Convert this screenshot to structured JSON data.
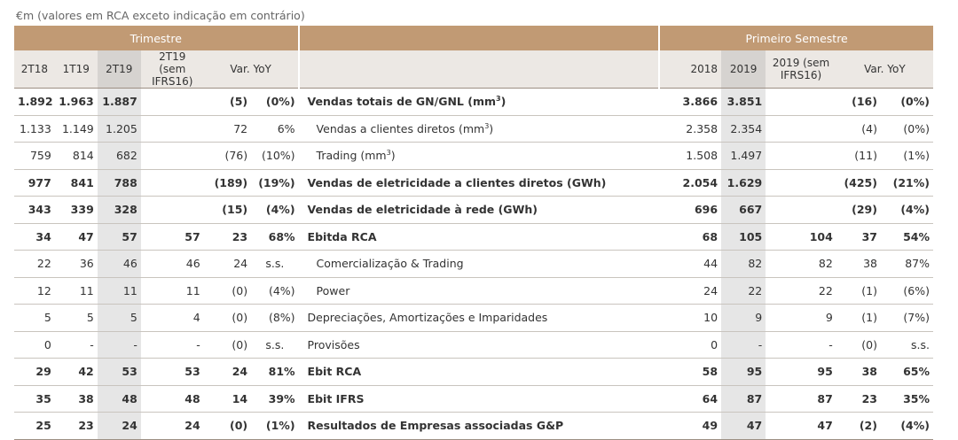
{
  "caption": "€m (valores em RCA exceto indicação em contrário)",
  "groups": {
    "quarter": "Trimestre",
    "semester": "Primeiro Semestre"
  },
  "headers": {
    "q1": "2T18",
    "q2": "1T19",
    "q3": "2T19",
    "q4": "2T19 (sem IFRS16)",
    "q5": "Var. YoY",
    "s1": "2018",
    "s2": "2019",
    "s3": "2019 (sem IFRS16)",
    "s4": "Var. YoY"
  },
  "rows": [
    {
      "bold": true,
      "indent": false,
      "q": [
        "1.892",
        "1.963",
        "1.887",
        "",
        "(5)",
        "(0%)"
      ],
      "label": "Vendas totais de GN/GNL (mm",
      "sup": "3",
      "label_end": ")",
      "s": [
        "3.866",
        "3.851",
        "",
        "(16)",
        "(0%)"
      ]
    },
    {
      "bold": false,
      "indent": true,
      "q": [
        "1.133",
        "1.149",
        "1.205",
        "",
        "72",
        "6%"
      ],
      "label": "Vendas a clientes diretos (mm",
      "sup": "3",
      "label_end": ")",
      "s": [
        "2.358",
        "2.354",
        "",
        "(4)",
        "(0%)"
      ]
    },
    {
      "bold": false,
      "indent": true,
      "q": [
        "759",
        "814",
        "682",
        "",
        "(76)",
        "(10%)"
      ],
      "label": "Trading (mm",
      "sup": "3",
      "label_end": ")",
      "s": [
        "1.508",
        "1.497",
        "",
        "(11)",
        "(1%)"
      ]
    },
    {
      "bold": true,
      "indent": false,
      "q": [
        "977",
        "841",
        "788",
        "",
        "(189)",
        "(19%)"
      ],
      "label": "Vendas de eletricidade a clientes diretos (GWh)",
      "sup": "",
      "label_end": "",
      "s": [
        "2.054",
        "1.629",
        "",
        "(425)",
        "(21%)"
      ]
    },
    {
      "bold": true,
      "indent": false,
      "q": [
        "343",
        "339",
        "328",
        "",
        "(15)",
        "(4%)"
      ],
      "label": "Vendas de eletricidade à rede (GWh)",
      "sup": "",
      "label_end": "",
      "s": [
        "696",
        "667",
        "",
        "(29)",
        "(4%)"
      ]
    },
    {
      "bold": true,
      "indent": false,
      "q": [
        "34",
        "47",
        "57",
        "57",
        "23",
        "68%"
      ],
      "label": "Ebitda RCA",
      "sup": "",
      "label_end": "",
      "s": [
        "68",
        "105",
        "104",
        "37",
        "54%"
      ]
    },
    {
      "bold": false,
      "indent": true,
      "q": [
        "22",
        "36",
        "46",
        "46",
        "24",
        "s.s."
      ],
      "label": "Comercialização & Trading",
      "sup": "",
      "label_end": "",
      "s": [
        "44",
        "82",
        "82",
        "38",
        "87%"
      ]
    },
    {
      "bold": false,
      "indent": true,
      "q": [
        "12",
        "11",
        "11",
        "11",
        "(0)",
        "(4%)"
      ],
      "label": "Power",
      "sup": "",
      "label_end": "",
      "s": [
        "24",
        "22",
        "22",
        "(1)",
        "(6%)"
      ]
    },
    {
      "bold": false,
      "indent": false,
      "q": [
        "5",
        "5",
        "5",
        "4",
        "(0)",
        "(8%)"
      ],
      "label": "Depreciações, Amortizações e Imparidades",
      "sup": "",
      "label_end": "",
      "s": [
        "10",
        "9",
        "9",
        "(1)",
        "(7%)"
      ]
    },
    {
      "bold": false,
      "indent": false,
      "q": [
        "0",
        "-",
        "-",
        "-",
        "(0)",
        "s.s."
      ],
      "label": "Provisões",
      "sup": "",
      "label_end": "",
      "s": [
        "0",
        "-",
        "-",
        "(0)",
        "s.s."
      ]
    },
    {
      "bold": true,
      "indent": false,
      "q": [
        "29",
        "42",
        "53",
        "53",
        "24",
        "81%"
      ],
      "label": "Ebit RCA",
      "sup": "",
      "label_end": "",
      "s": [
        "58",
        "95",
        "95",
        "38",
        "65%"
      ]
    },
    {
      "bold": true,
      "indent": false,
      "q": [
        "35",
        "38",
        "48",
        "48",
        "14",
        "39%"
      ],
      "label": "Ebit IFRS",
      "sup": "",
      "label_end": "",
      "s": [
        "64",
        "87",
        "87",
        "23",
        "35%"
      ]
    },
    {
      "bold": true,
      "indent": false,
      "q": [
        "25",
        "23",
        "24",
        "24",
        "(0)",
        "(1%)"
      ],
      "label": "Resultados de Empresas associadas G&P",
      "sup": "",
      "label_end": "",
      "s": [
        "49",
        "47",
        "47",
        "(2)",
        "(4%)"
      ]
    }
  ]
}
